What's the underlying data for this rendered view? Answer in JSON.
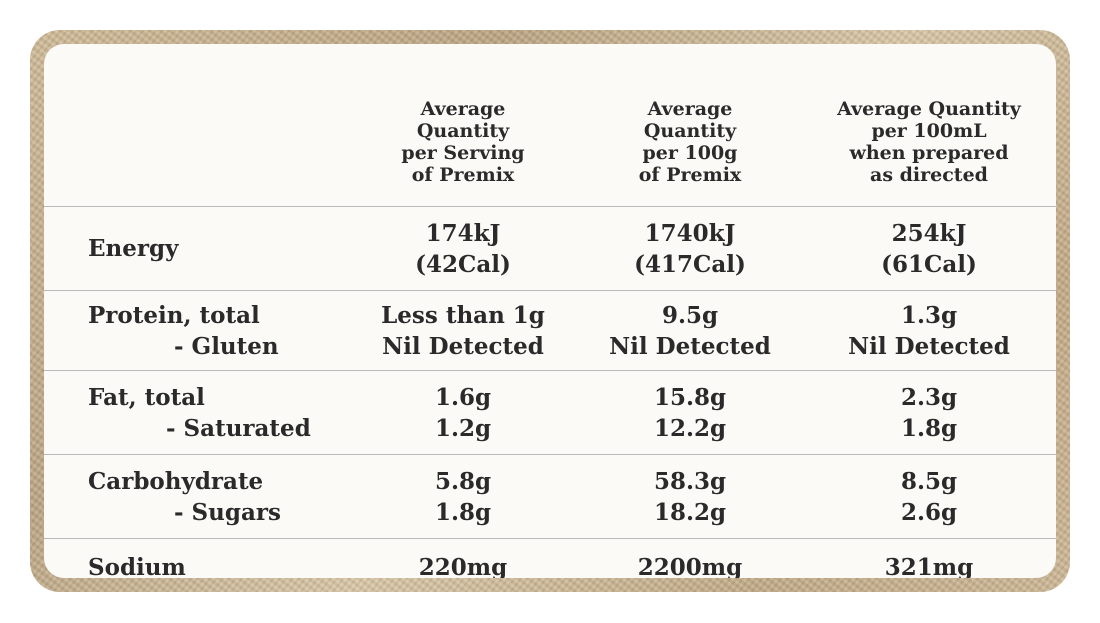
{
  "table": {
    "headers": [
      "",
      [
        "Average",
        "Quantity",
        "per Serving",
        "of Premix"
      ],
      [
        "Average",
        "Quantity",
        "per 100g",
        "of Premix"
      ],
      [
        "Average Quantity",
        "per 100mL",
        "when prepared",
        "as directed"
      ]
    ],
    "rows": [
      {
        "label": "Energy",
        "sub": "",
        "values": [
          [
            "174kJ",
            "(42Cal)"
          ],
          [
            "1740kJ",
            "(417Cal)"
          ],
          [
            "254kJ",
            "(61Cal)"
          ]
        ]
      },
      {
        "label": "Protein, total",
        "sub": "- Gluten",
        "values": [
          [
            "Less than 1g",
            "Nil Detected"
          ],
          [
            "9.5g",
            "Nil Detected"
          ],
          [
            "1.3g",
            "Nil Detected"
          ]
        ]
      },
      {
        "label": "Fat, total",
        "sub": "- Saturated",
        "values": [
          [
            "1.6g",
            "1.2g"
          ],
          [
            "15.8g",
            "12.2g"
          ],
          [
            "2.3g",
            "1.8g"
          ]
        ]
      },
      {
        "label": "Carbohydrate",
        "sub": "- Sugars",
        "values": [
          [
            "5.8g",
            "1.8g"
          ],
          [
            "58.3g",
            "18.2g"
          ],
          [
            "8.5g",
            "2.6g"
          ]
        ]
      },
      {
        "label": "Sodium",
        "sub": "",
        "values": [
          [
            "220mg"
          ],
          [
            "2200mg"
          ],
          [
            "321mg"
          ]
        ]
      }
    ]
  },
  "colors": {
    "frame": "#c4ad8a",
    "panel": "#fbfaf7",
    "text": "#2a2a2a",
    "rule": "#b9b9b9"
  }
}
